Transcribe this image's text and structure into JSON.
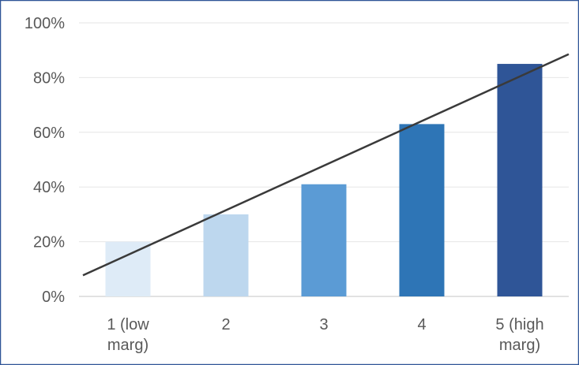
{
  "chart_data": {
    "type": "bar",
    "categories": [
      "1 (low marg)",
      "2",
      "3",
      "4",
      "5 (high marg)"
    ],
    "category_lines": [
      [
        "1 (low",
        "marg)"
      ],
      [
        "2"
      ],
      [
        "3"
      ],
      [
        "4"
      ],
      [
        "5 (high",
        "marg)"
      ]
    ],
    "values": [
      20,
      30,
      41,
      63,
      85
    ],
    "ylim": [
      0,
      100
    ],
    "yticks": [
      "0%",
      "20%",
      "40%",
      "60%",
      "80%",
      "100%"
    ],
    "ytick_values": [
      0,
      20,
      40,
      60,
      80,
      100
    ],
    "grid": true,
    "trendline": {
      "type": "linear",
      "color": "#3a3a3a"
    },
    "bar_colors": [
      "#deebf7",
      "#bdd7ee",
      "#5b9bd5",
      "#2e75b6",
      "#2f5597"
    ],
    "colors": {
      "border": "#2f5597",
      "grid": "#e6e6e6",
      "axis": "#d9d9d9",
      "tick_text": "#595959"
    }
  }
}
